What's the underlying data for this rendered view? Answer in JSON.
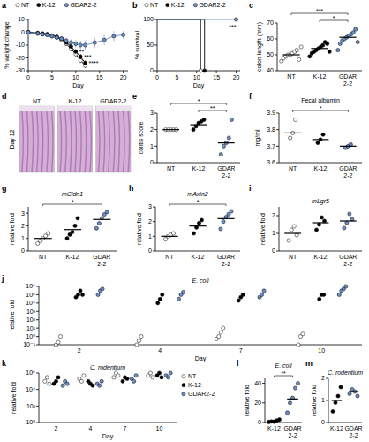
{
  "chart_data": [
    {
      "panel": "a",
      "type": "line",
      "y_label": "% weight change",
      "x_label": "Day",
      "x": [
        0,
        2,
        3,
        4,
        5,
        6,
        7,
        8,
        9,
        10,
        11,
        12,
        14,
        16,
        18,
        20
      ],
      "xlim": [
        0,
        21
      ],
      "xticks": [
        0,
        5,
        10,
        15,
        20
      ],
      "ylim": [
        -30,
        10
      ],
      "yticks": [
        -30,
        -20,
        -10,
        0,
        10
      ],
      "legend": "top",
      "annotations": [
        "**",
        "***",
        "****"
      ],
      "series": [
        {
          "name": "NT",
          "color": "#ffffff",
          "values": [
            0,
            -1,
            -1.5,
            -2,
            -3,
            -4,
            -6,
            -9,
            -13,
            -17,
            -22,
            -26,
            null,
            null,
            null,
            null
          ],
          "errors": [
            0,
            0.5,
            0.6,
            0.8,
            1,
            1,
            1.2,
            1.5,
            1.8,
            2,
            2,
            2,
            null,
            null,
            null,
            null
          ]
        },
        {
          "name": "K-12",
          "color": "#000000",
          "values": [
            0,
            -0.5,
            -1,
            -1.5,
            -2.5,
            -3.5,
            -5,
            -8,
            -11,
            -15,
            -19,
            -24,
            null,
            null,
            null,
            null
          ],
          "errors": [
            0,
            0.5,
            0.6,
            0.8,
            1,
            1,
            1.2,
            1.5,
            1.8,
            2,
            2,
            2,
            null,
            null,
            null,
            null
          ]
        },
        {
          "name": "GDAR2-2",
          "color": "#6b8fc9",
          "values": [
            0,
            -1,
            -1.5,
            -2,
            -3,
            -4,
            -5,
            -6.5,
            -8,
            -9,
            -10,
            -10,
            -8,
            -6,
            -3,
            -2
          ],
          "errors": [
            0,
            0.5,
            0.6,
            0.8,
            1,
            1,
            1.5,
            2,
            2.5,
            3,
            3.5,
            4,
            4,
            4,
            4,
            3
          ]
        }
      ]
    },
    {
      "panel": "b",
      "type": "step",
      "y_label": "% survival",
      "x_label": "Day",
      "xlim": [
        0,
        21
      ],
      "xticks": [
        0,
        5,
        10,
        15,
        20
      ],
      "ylim": [
        0,
        100
      ],
      "yticks": [
        0,
        50,
        100
      ],
      "legend": "top",
      "annotations": [
        "***"
      ],
      "series": [
        {
          "name": "NT",
          "color": "#ffffff",
          "x": [
            0,
            11
          ],
          "values": [
            100,
            0
          ]
        },
        {
          "name": "K-12",
          "color": "#000000",
          "x": [
            0,
            12
          ],
          "values": [
            100,
            0
          ]
        },
        {
          "name": "GDAR2-2",
          "color": "#6b8fc9",
          "x": [
            0,
            20
          ],
          "values": [
            100,
            100
          ]
        }
      ]
    },
    {
      "panel": "c",
      "type": "scatter",
      "y_label": "colon length (mm)",
      "categories": [
        "NT",
        "K-12",
        "GDAR 2-2"
      ],
      "colors": [
        "#ffffff",
        "#000000",
        "#6b8fc9"
      ],
      "ylim": [
        40,
        70
      ],
      "yticks": [
        40,
        50,
        60,
        70
      ],
      "values": [
        [
          46,
          48,
          49,
          50,
          50,
          51,
          52,
          53,
          47,
          55
        ],
        [
          49,
          51,
          52,
          53,
          54,
          55,
          56,
          58,
          57,
          52
        ],
        [
          53,
          57,
          59,
          60,
          61,
          62,
          63,
          64,
          66,
          58
        ]
      ],
      "means": [
        50,
        54,
        61
      ],
      "significance": [
        {
          "from": 0,
          "to": 2,
          "label": "***"
        },
        {
          "from": 1,
          "to": 2,
          "label": "*"
        }
      ]
    },
    {
      "panel": "d",
      "type": "image",
      "categories": [
        "NT",
        "K-12",
        "GDAR2-2"
      ],
      "annotations": [
        "Day 12"
      ]
    },
    {
      "panel": "e",
      "type": "scatter",
      "y_label": "colitis score",
      "categories": [
        "NT",
        "K-12",
        "GDAR 2-2"
      ],
      "colors": [
        "#ffffff",
        "#000000",
        "#6b8fc9"
      ],
      "ylim": [
        0,
        3
      ],
      "yticks": [
        0,
        1,
        2,
        3
      ],
      "values": [
        [
          2,
          2,
          2,
          2,
          2
        ],
        [
          2,
          2.2,
          2.4,
          2.5,
          2.6
        ],
        [
          0.5,
          1,
          1.2,
          1.5,
          2.6
        ]
      ],
      "means": [
        2,
        2.3,
        1.2
      ],
      "significance": [
        {
          "from": 0,
          "to": 2,
          "label": "*"
        },
        {
          "from": 1,
          "to": 2,
          "label": "**"
        }
      ]
    },
    {
      "panel": "f",
      "type": "scatter",
      "title": "Fecal albumin",
      "y_label": "mg/ml",
      "categories": [
        "NT",
        "K-12",
        "GDAR 2-2"
      ],
      "colors": [
        "#ffffff",
        "#000000",
        "#6b8fc9"
      ],
      "ylim": [
        3.6,
        3.9
      ],
      "yticks": [
        3.6,
        3.7,
        3.8,
        3.9
      ],
      "values": [
        [
          3.75,
          3.78,
          3.86
        ],
        [
          3.72,
          3.74,
          3.77
        ],
        [
          3.69,
          3.7,
          3.71
        ]
      ],
      "means": [
        3.78,
        3.74,
        3.7
      ],
      "significance": [
        {
          "from": 0,
          "to": 2,
          "label": "*"
        }
      ]
    },
    {
      "panel": "g",
      "type": "scatter",
      "title": "mCldn1",
      "y_label": "relative fold",
      "categories": [
        "NT",
        "K-12",
        "GDAR 2-2"
      ],
      "colors": [
        "#ffffff",
        "#000000",
        "#6b8fc9"
      ],
      "ylim": [
        0,
        3.5
      ],
      "yticks": [
        0,
        1,
        2,
        3
      ],
      "values": [
        [
          0.6,
          0.8,
          1,
          1.2,
          1.4
        ],
        [
          1,
          1.3,
          1.5,
          2,
          2.6
        ],
        [
          1.8,
          2.2,
          2.6,
          2.9,
          3.1
        ]
      ],
      "means": [
        1,
        1.7,
        2.5
      ],
      "significance": [
        {
          "from": 0,
          "to": 2,
          "label": "*"
        }
      ]
    },
    {
      "panel": "h",
      "type": "scatter",
      "title": "mAxin2",
      "y_label": "relative fold",
      "categories": [
        "NT",
        "K-12",
        "GDAR 2-2"
      ],
      "colors": [
        "#ffffff",
        "#000000",
        "#6b8fc9"
      ],
      "ylim": [
        0,
        3
      ],
      "yticks": [
        0,
        1,
        2,
        3
      ],
      "values": [
        [
          0.8,
          1,
          1.1,
          1.2
        ],
        [
          1.2,
          1.6,
          1.9,
          2.1
        ],
        [
          1.5,
          2,
          2.3,
          2.5,
          2.7
        ]
      ],
      "means": [
        1,
        1.7,
        2.2
      ],
      "significance": [
        {
          "from": 0,
          "to": 2,
          "label": "*"
        }
      ]
    },
    {
      "panel": "i",
      "type": "scatter",
      "title": "mLgr5",
      "y_label": "relative fold",
      "categories": [
        "NT",
        "K-12",
        "GDAR 2-2"
      ],
      "colors": [
        "#ffffff",
        "#000000",
        "#6b8fc9"
      ],
      "ylim": [
        0,
        2.5
      ],
      "yticks": [
        0,
        1,
        2
      ],
      "values": [
        [
          0.6,
          1.2,
          1.4,
          0.9
        ],
        [
          1.2,
          1.5,
          1.9,
          1.7
        ],
        [
          1.3,
          1.6,
          2.1,
          1.8
        ]
      ],
      "means": [
        1,
        1.6,
        1.7
      ]
    },
    {
      "panel": "j",
      "type": "scatter",
      "title": "E. coli",
      "y_label": "relative fold",
      "x_label": "Day",
      "log": "y",
      "categories": [
        "2",
        "4",
        "7",
        "10"
      ],
      "ylim": [
        0.1,
        1000000
      ],
      "yticks": [
        {
          "value": 0.1,
          "label": "10⁻¹"
        },
        {
          "value": 1,
          "label": "10⁰"
        },
        {
          "value": 10,
          "label": "10¹"
        },
        {
          "value": 100,
          "label": "10²"
        },
        {
          "value": 1000,
          "label": "10³"
        },
        {
          "value": 10000,
          "label": "10⁴"
        },
        {
          "value": 100000,
          "label": "10⁵"
        },
        {
          "value": 1000000,
          "label": "10⁶"
        }
      ],
      "series": [
        {
          "name": "NT",
          "color": "#ffffff",
          "values": [
            [
              0.1,
              0.2,
              1
            ],
            [
              0.1,
              0.3,
              1
            ],
            [
              0.5,
              1,
              3,
              10
            ],
            [
              0.1,
              1,
              2
            ]
          ]
        },
        {
          "name": "K-12",
          "color": "#000000",
          "values": [
            [
              50000,
              100000,
              300000,
              100000
            ],
            [
              10000,
              30000,
              100000
            ],
            [
              20000,
              50000,
              100000
            ],
            [
              30000,
              100000,
              100000
            ]
          ]
        },
        {
          "name": "GDAR2-2",
          "color": "#6b8fc9",
          "values": [
            [
              100000,
              300000,
              500000
            ],
            [
              30000,
              100000,
              200000
            ],
            [
              50000,
              100000,
              300000
            ],
            [
              100000,
              300000,
              500000,
              1000000
            ]
          ]
        }
      ]
    },
    {
      "panel": "k",
      "type": "scatter",
      "title": "C. rodentium",
      "y_label": "relative fold",
      "x_label": "Day",
      "log": "y",
      "categories": [
        "2",
        "4",
        "7",
        "10"
      ],
      "legend": "right",
      "ylim": [
        1,
        1000000
      ],
      "yticks": [
        {
          "value": 1,
          "label": "10⁰"
        },
        {
          "value": 100,
          "label": "10²"
        },
        {
          "value": 10000,
          "label": "10⁴"
        },
        {
          "value": 1000000,
          "label": "10⁶"
        }
      ],
      "series": [
        {
          "name": "NT",
          "color": "#ffffff",
          "values": [
            [
              100000,
              300000,
              50000
            ],
            [
              200000,
              100000,
              500000
            ],
            [
              300000,
              1000000,
              500000
            ],
            [
              500000,
              1000000,
              300000
            ]
          ]
        },
        {
          "name": "K-12",
          "color": "#000000",
          "values": [
            [
              50000,
              100000,
              300000
            ],
            [
              100000,
              50000,
              30000
            ],
            [
              100000,
              300000,
              200000
            ],
            [
              500000,
              1000000,
              300000
            ]
          ]
        },
        {
          "name": "GDAR2-2",
          "color": "#6b8fc9",
          "values": [
            [
              30000,
              100000,
              50000
            ],
            [
              50000,
              30000,
              100000
            ],
            [
              200000,
              100000,
              500000
            ],
            [
              500000,
              300000,
              1000000
            ]
          ]
        }
      ]
    },
    {
      "panel": "l",
      "type": "scatter",
      "title": "E. coli",
      "y_label": "relative fold",
      "categories": [
        "K-12",
        "GDAR 2-2"
      ],
      "colors": [
        "#000000",
        "#6b8fc9"
      ],
      "ylim": [
        0,
        45
      ],
      "yticks": [
        0,
        20,
        40
      ],
      "values": [
        [
          0.5,
          1,
          0.8,
          2,
          3
        ],
        [
          10,
          20,
          25,
          35,
          40
        ]
      ],
      "means": [
        1.5,
        24
      ],
      "significance": [
        {
          "from": 0,
          "to": 1,
          "label": "**"
        }
      ]
    },
    {
      "panel": "m",
      "type": "scatter",
      "title": "C. rodentium",
      "y_label": "relative fold",
      "categories": [
        "K-12",
        "GDAR 2-2"
      ],
      "colors": [
        "#000000",
        "#6b8fc9"
      ],
      "ylim": [
        0,
        2
      ],
      "yticks": [
        0,
        1,
        2
      ],
      "values": [
        [
          0.5,
          0.9,
          1.2,
          1.6
        ],
        [
          1.3,
          1.5,
          1.4,
          1.2
        ]
      ],
      "means": [
        1,
        1.4
      ]
    }
  ]
}
